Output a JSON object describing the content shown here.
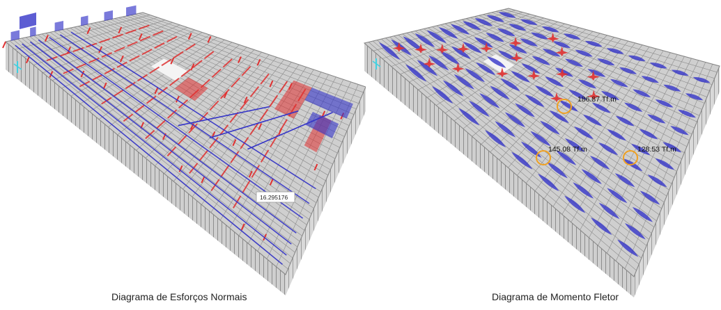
{
  "left_panel": {
    "caption": "Diagrama de Esforços Normais",
    "tooltip_value": "16.295176"
  },
  "right_panel": {
    "caption": "Diagrama de Momento Fletor",
    "annotations": [
      {
        "label": "186.87 Tf.m"
      },
      {
        "label": "145.08 Tf.m"
      },
      {
        "label": "128.53 Tf.m"
      }
    ]
  },
  "colors": {
    "background": "#ffffff",
    "structure_gray": "#c8c8c8",
    "grid_line": "#8a8a8a",
    "tension_red": "#e03030",
    "compression_blue": "#3434c8",
    "highlight_orange": "#f0a020",
    "axis_cyan": "#40d0e0"
  }
}
